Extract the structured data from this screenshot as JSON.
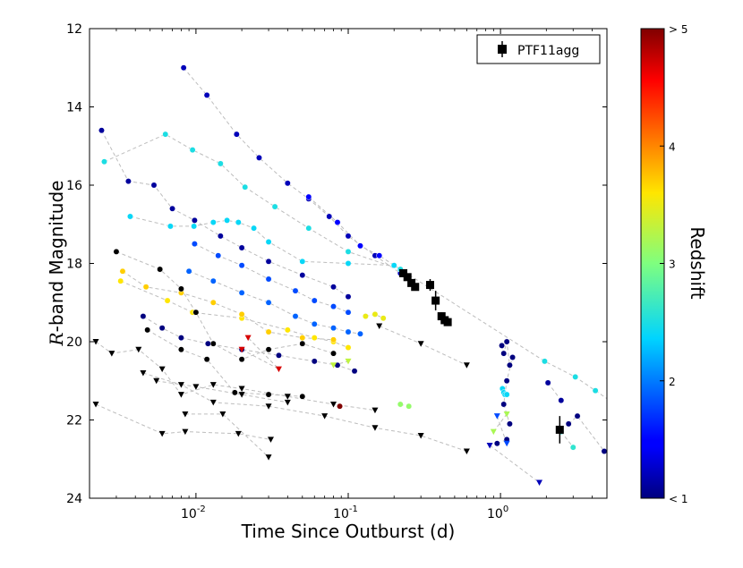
{
  "chart_data": {
    "type": "scatter",
    "xscale": "log",
    "xlabel": "Time Since Outburst (d)",
    "ylabel": "R-band Magnitude",
    "xlim": [
      0.002,
      5.0
    ],
    "ylim": [
      24,
      12
    ],
    "x_ticks": [
      {
        "value": 0.01,
        "label": "10",
        "exp": "-2"
      },
      {
        "value": 0.1,
        "label": "10",
        "exp": "-1"
      },
      {
        "value": 1.0,
        "label": "10",
        "exp": "0"
      }
    ],
    "y_ticks": [
      12,
      14,
      16,
      18,
      20,
      22,
      24
    ],
    "colorbar": {
      "label": "Redshift",
      "range": [
        1,
        5
      ],
      "tick_labels": [
        "< 1",
        "2",
        "3",
        "4",
        "> 5"
      ]
    },
    "legend": {
      "position": "top-right",
      "entries": [
        "PTF11agg"
      ]
    },
    "ptf11agg": [
      {
        "t": 0.23,
        "mag": 18.25,
        "err": 0.08
      },
      {
        "t": 0.245,
        "mag": 18.35,
        "err": 0.08
      },
      {
        "t": 0.26,
        "mag": 18.5,
        "err": 0.08
      },
      {
        "t": 0.275,
        "mag": 18.6,
        "err": 0.08
      },
      {
        "t": 0.345,
        "mag": 18.55,
        "err": 0.15
      },
      {
        "t": 0.375,
        "mag": 18.95,
        "err": 0.25
      },
      {
        "t": 0.41,
        "mag": 19.35,
        "err": 0.1
      },
      {
        "t": 0.43,
        "mag": 19.45,
        "err": 0.1
      },
      {
        "t": 0.45,
        "mag": 19.5,
        "err": 0.1
      },
      {
        "t": 2.45,
        "mag": 22.25,
        "err": 0.35
      }
    ],
    "afterglows": [
      {
        "z": 1.2,
        "pts": [
          [
            0.0083,
            13.0
          ],
          [
            0.0118,
            13.7
          ],
          [
            0.0185,
            14.7
          ],
          [
            0.026,
            15.3
          ],
          [
            0.04,
            15.95
          ],
          [
            0.055,
            16.35
          ],
          [
            0.075,
            16.8
          ],
          [
            0.1,
            17.3
          ],
          [
            0.15,
            17.8
          ],
          [
            0.22,
            18.25
          ]
        ]
      },
      {
        "z": 1.5,
        "pts": [
          [
            0.055,
            16.3
          ],
          [
            0.085,
            16.95
          ],
          [
            0.12,
            17.55
          ],
          [
            0.16,
            17.8
          ],
          [
            0.22,
            18.15
          ]
        ]
      },
      {
        "z": 2.5,
        "pts": [
          [
            0.0025,
            15.4
          ],
          [
            0.0063,
            14.7
          ],
          [
            0.0095,
            15.1
          ],
          [
            0.0145,
            15.45
          ],
          [
            0.021,
            16.05
          ],
          [
            0.033,
            16.55
          ],
          [
            0.055,
            17.1
          ],
          [
            0.1,
            17.7
          ],
          [
            0.22,
            18.15
          ],
          [
            1.95,
            20.5
          ],
          [
            3.1,
            20.9
          ],
          [
            4.2,
            21.25
          ],
          [
            5.2,
            21.5
          ]
        ]
      },
      {
        "z": 2.4,
        "pts": [
          [
            0.0037,
            16.8
          ],
          [
            0.0068,
            17.05
          ],
          [
            0.0097,
            17.05
          ],
          [
            0.013,
            16.95
          ],
          [
            0.016,
            16.9
          ],
          [
            0.019,
            16.95
          ],
          [
            0.024,
            17.1
          ],
          [
            0.03,
            17.45
          ],
          [
            0.05,
            17.95
          ],
          [
            0.1,
            18.0
          ],
          [
            0.2,
            18.05
          ]
        ]
      },
      {
        "z": 1.8,
        "pts": [
          [
            0.0098,
            17.5
          ],
          [
            0.014,
            17.8
          ],
          [
            0.02,
            18.05
          ],
          [
            0.03,
            18.4
          ],
          [
            0.045,
            18.7
          ],
          [
            0.06,
            18.95
          ],
          [
            0.08,
            19.1
          ],
          [
            0.1,
            19.25
          ]
        ]
      },
      {
        "z": 1.1,
        "pts": [
          [
            0.0024,
            14.6
          ],
          [
            0.0036,
            15.9
          ],
          [
            0.0053,
            16.0
          ],
          [
            0.007,
            16.6
          ],
          [
            0.0098,
            16.9
          ],
          [
            0.0145,
            17.3
          ],
          [
            0.02,
            17.6
          ],
          [
            0.03,
            17.95
          ],
          [
            0.05,
            18.3
          ],
          [
            0.08,
            18.6
          ],
          [
            0.1,
            18.85
          ]
        ]
      },
      {
        "z": 1.9,
        "pts": [
          [
            0.009,
            18.2
          ],
          [
            0.013,
            18.45
          ],
          [
            0.02,
            18.75
          ],
          [
            0.03,
            19.0
          ],
          [
            0.045,
            19.35
          ],
          [
            0.06,
            19.55
          ],
          [
            0.08,
            19.65
          ],
          [
            0.1,
            19.75
          ],
          [
            0.12,
            19.8
          ]
        ]
      },
      {
        "z": 1.0,
        "pts": [
          [
            0.0045,
            19.35
          ],
          [
            0.006,
            19.65
          ],
          [
            0.008,
            19.9
          ],
          [
            0.012,
            20.05
          ],
          [
            0.02,
            20.2
          ],
          [
            0.035,
            20.35
          ],
          [
            0.06,
            20.5
          ],
          [
            0.085,
            20.6
          ],
          [
            0.11,
            20.75
          ]
        ]
      },
      {
        "z": 3.6,
        "pts": [
          [
            0.0032,
            18.45
          ],
          [
            0.0065,
            18.95
          ],
          [
            0.0095,
            19.25
          ],
          [
            0.02,
            19.4
          ],
          [
            0.04,
            19.7
          ],
          [
            0.06,
            19.9
          ],
          [
            0.08,
            20.0
          ],
          [
            0.1,
            20.15
          ]
        ]
      },
      {
        "z": 3.7,
        "pts": [
          [
            0.0033,
            18.2
          ],
          [
            0.0047,
            18.6
          ],
          [
            0.008,
            18.75
          ],
          [
            0.013,
            19.0
          ],
          [
            0.02,
            19.3
          ],
          [
            0.03,
            19.75
          ],
          [
            0.05,
            19.9
          ],
          [
            0.08,
            19.95
          ]
        ]
      },
      {
        "z": 3.5,
        "pts": [
          [
            0.13,
            19.35
          ],
          [
            0.15,
            19.3
          ],
          [
            0.17,
            19.4
          ]
        ]
      },
      {
        "z": 3.1,
        "pts": [
          [
            0.22,
            21.6
          ],
          [
            0.25,
            21.65
          ]
        ]
      },
      {
        "z": 0.8,
        "pts": [
          [
            0.003,
            17.7
          ],
          [
            0.0058,
            18.15
          ],
          [
            0.008,
            18.65
          ],
          [
            0.01,
            19.25
          ],
          [
            0.013,
            20.05
          ],
          [
            0.02,
            20.45
          ],
          [
            0.03,
            20.2
          ],
          [
            0.05,
            20.05
          ],
          [
            0.08,
            20.3
          ]
        ]
      },
      {
        "z": 0.7,
        "pts": [
          [
            0.0048,
            19.7
          ],
          [
            0.008,
            20.2
          ],
          [
            0.0118,
            20.45
          ],
          [
            0.018,
            21.3
          ],
          [
            0.03,
            21.35
          ],
          [
            0.05,
            21.4
          ]
        ]
      },
      {
        "z": 1.0,
        "pts": [
          [
            1.02,
            20.1
          ],
          [
            1.05,
            20.3
          ],
          [
            1.1,
            20.0
          ],
          [
            1.15,
            20.6
          ],
          [
            1.2,
            20.4
          ],
          [
            1.1,
            21.0
          ],
          [
            1.05,
            21.6
          ],
          [
            1.15,
            22.1
          ]
        ]
      },
      {
        "z": 2.4,
        "pts": [
          [
            1.03,
            21.2
          ],
          [
            1.05,
            21.3
          ],
          [
            1.07,
            21.35
          ],
          [
            1.1,
            21.35
          ]
        ]
      },
      {
        "z": 1.0,
        "pts": [
          [
            0.95,
            22.6
          ],
          [
            1.1,
            22.5
          ]
        ]
      },
      {
        "z": 1.0,
        "pts": [
          [
            2.8,
            22.1
          ],
          [
            3.2,
            21.9
          ],
          [
            4.8,
            22.8
          ]
        ]
      },
      {
        "z": 1.1,
        "pts": [
          [
            2.05,
            21.05
          ],
          [
            2.5,
            21.5
          ]
        ]
      },
      {
        "z": 2.6,
        "pts": [
          [
            2.5,
            22.3
          ],
          [
            3.0,
            22.7
          ]
        ]
      },
      {
        "z": 5.0,
        "pts": [
          [
            0.088,
            21.65
          ]
        ]
      }
    ],
    "upper_limits": [
      {
        "z": 0.5,
        "pts": [
          [
            0.0022,
            20.0
          ],
          [
            0.0028,
            20.3
          ],
          [
            0.0042,
            20.2
          ],
          [
            0.006,
            20.7
          ],
          [
            0.008,
            21.35
          ],
          [
            0.013,
            21.1
          ],
          [
            0.02,
            21.2
          ],
          [
            0.04,
            21.4
          ],
          [
            0.08,
            21.6
          ],
          [
            0.15,
            21.75
          ]
        ]
      },
      {
        "z": 0.5,
        "pts": [
          [
            0.0022,
            21.6
          ],
          [
            0.006,
            22.35
          ],
          [
            0.0085,
            22.3
          ],
          [
            0.019,
            22.35
          ],
          [
            0.031,
            22.5
          ]
        ]
      },
      {
        "z": 0.5,
        "pts": [
          [
            0.0045,
            20.8
          ],
          [
            0.008,
            21.1
          ],
          [
            0.013,
            21.55
          ],
          [
            0.03,
            21.65
          ],
          [
            0.07,
            21.9
          ],
          [
            0.15,
            22.2
          ],
          [
            0.3,
            22.4
          ],
          [
            0.6,
            22.8
          ]
        ]
      },
      {
        "z": 0.5,
        "pts": [
          [
            0.0085,
            21.85
          ],
          [
            0.015,
            21.85
          ],
          [
            0.03,
            22.95
          ]
        ]
      },
      {
        "z": 0.5,
        "pts": [
          [
            0.16,
            19.6
          ],
          [
            0.3,
            20.05
          ],
          [
            0.6,
            20.6
          ]
        ]
      },
      {
        "z": 0.5,
        "pts": [
          [
            0.0055,
            21.0
          ],
          [
            0.01,
            21.15
          ],
          [
            0.02,
            21.35
          ],
          [
            0.04,
            21.55
          ]
        ]
      },
      {
        "z": 4.7,
        "pts": [
          [
            0.02,
            20.2
          ],
          [
            0.035,
            20.7
          ],
          [
            0.022,
            19.9
          ]
        ]
      },
      {
        "z": 3.3,
        "pts": [
          [
            0.08,
            20.6
          ],
          [
            0.1,
            20.5
          ]
        ]
      },
      {
        "z": 3.2,
        "pts": [
          [
            0.9,
            22.3
          ],
          [
            1.1,
            21.85
          ]
        ]
      },
      {
        "z": 1.8,
        "pts": [
          [
            0.95,
            21.9
          ],
          [
            1.1,
            22.6
          ]
        ]
      },
      {
        "z": 1.2,
        "pts": [
          [
            0.85,
            22.65
          ],
          [
            1.8,
            23.6
          ]
        ]
      }
    ]
  }
}
